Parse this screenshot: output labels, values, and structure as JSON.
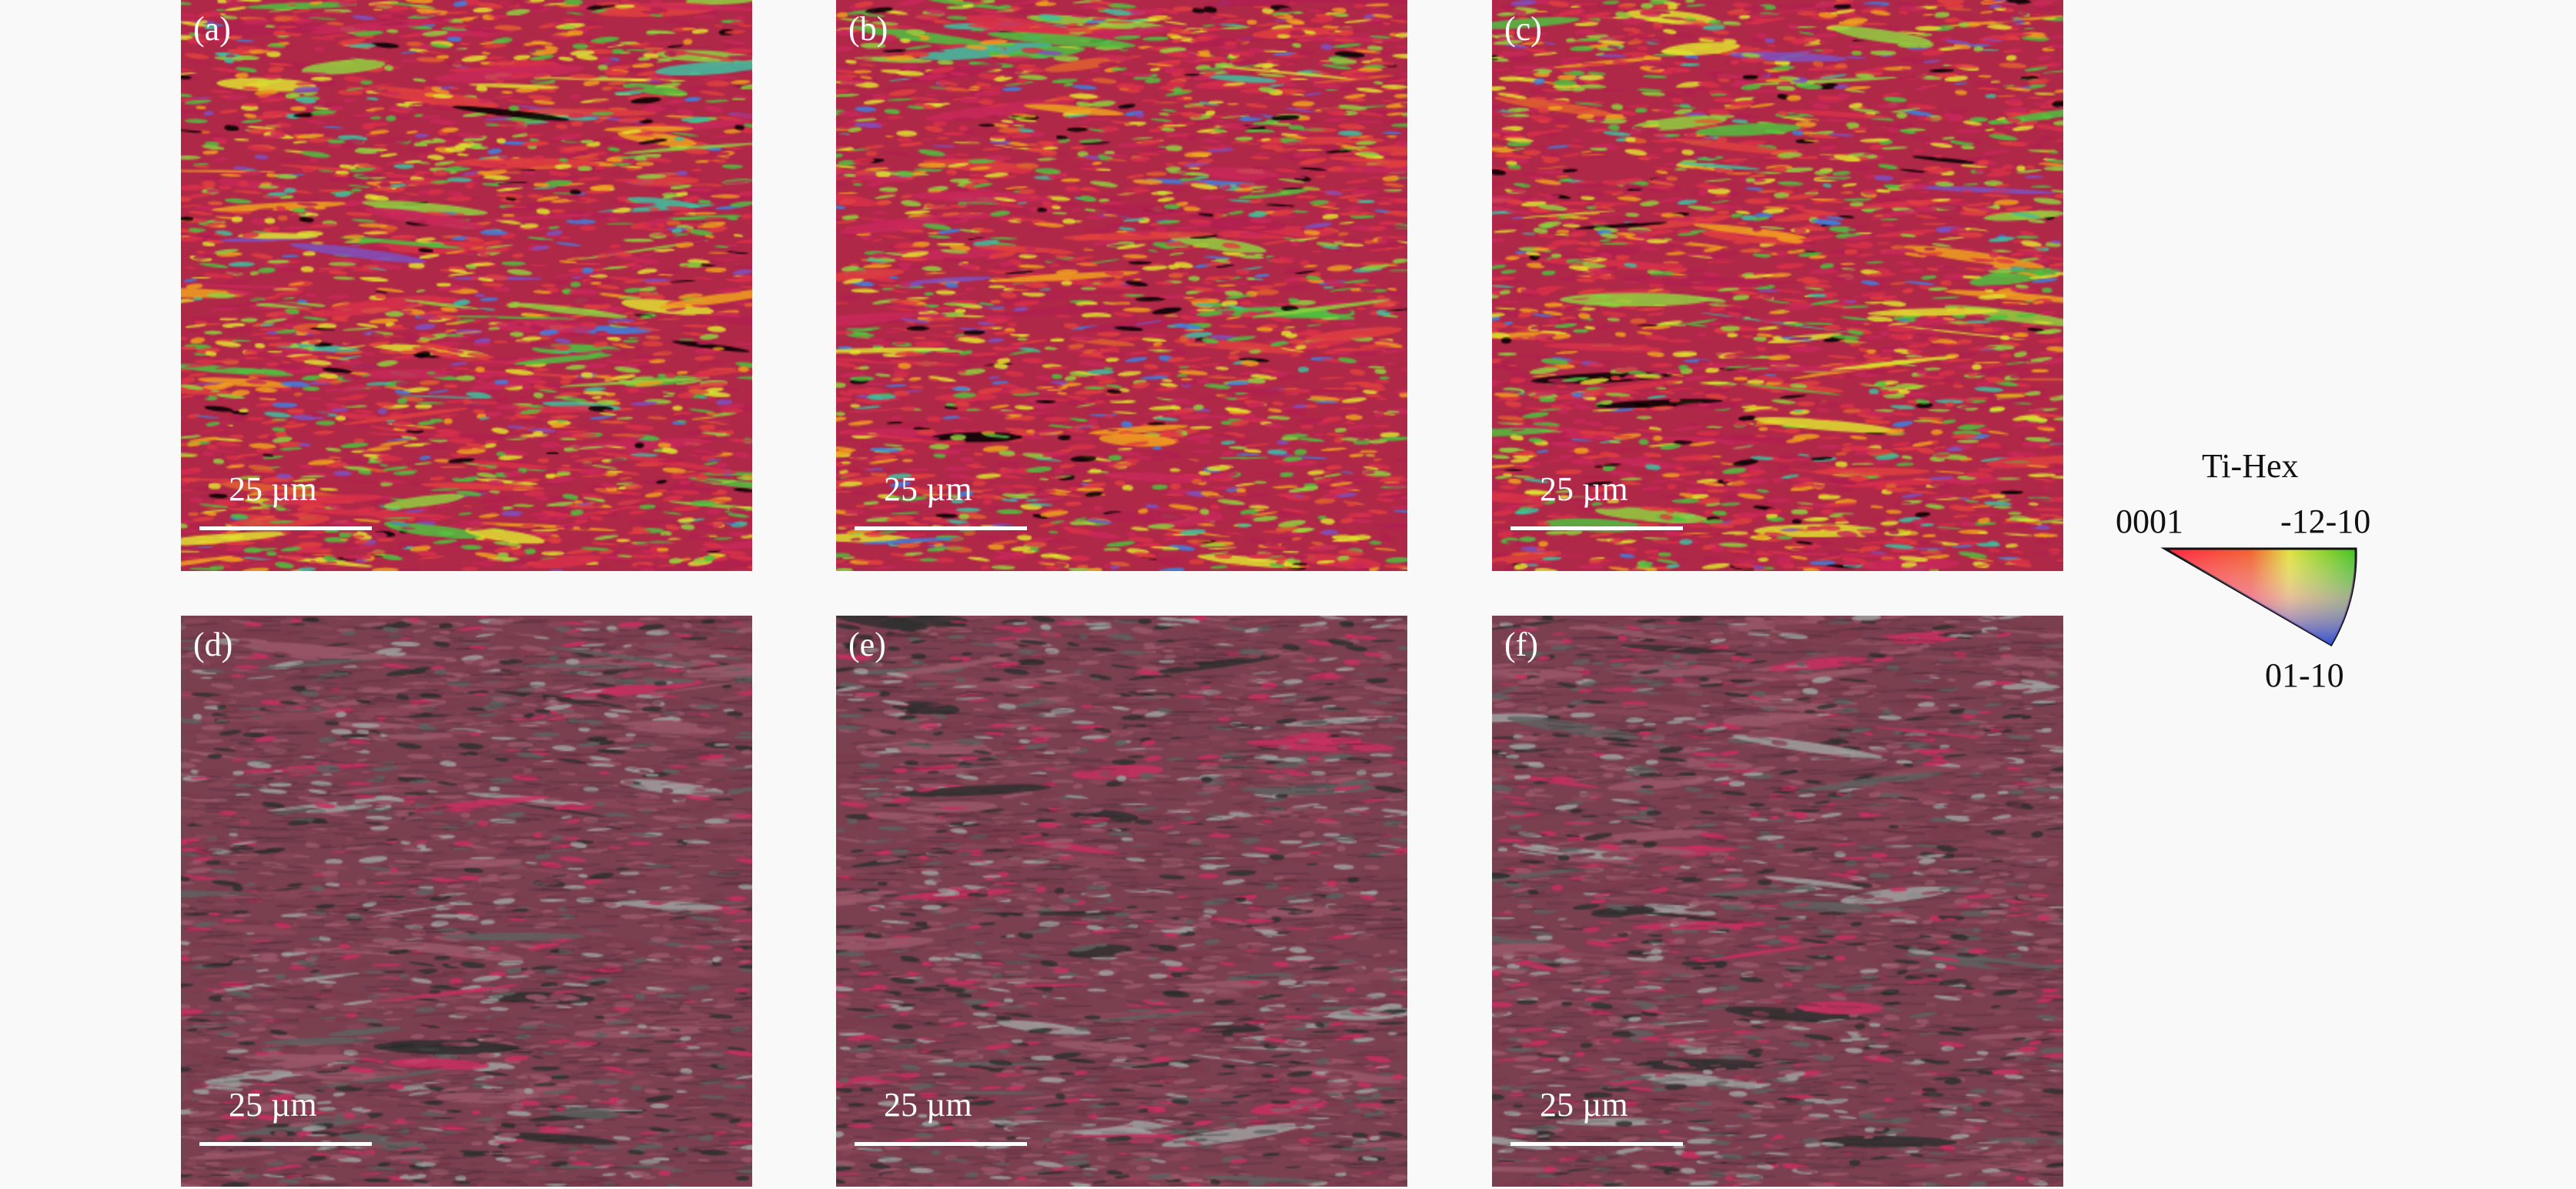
{
  "panels": [
    {
      "label": "(a)",
      "scale_bar": "25 µm",
      "type": "ipf"
    },
    {
      "label": "(b)",
      "scale_bar": "25 µm",
      "type": "ipf"
    },
    {
      "label": "(c)",
      "scale_bar": "25 µm",
      "type": "ipf"
    },
    {
      "label": "(d)",
      "scale_bar": "25 µm",
      "type": "phase"
    },
    {
      "label": "(e)",
      "scale_bar": "25 µm",
      "type": "phase"
    },
    {
      "label": "(f)",
      "scale_bar": "25 µm",
      "type": "phase"
    }
  ],
  "legend": {
    "title": "Ti-Hex",
    "corner_0001": "0001",
    "corner_1210": "-12-10",
    "corner_0110": "01-10",
    "colors": {
      "0001": "#ff2040",
      "-12-10": "#40c020",
      "01-10": "#3050d0"
    }
  },
  "ipf_palette": [
    "#d8304a",
    "#c8285a",
    "#e04040",
    "#b02050",
    "#50c040",
    "#90d040",
    "#e0e030",
    "#f0a020",
    "#e06030",
    "#4080e0",
    "#8050c0",
    "#40c0a0",
    "#000000"
  ],
  "phase_palette": [
    "#8a4858",
    "#7a3c4c",
    "#9a5868",
    "#c83060",
    "#606060",
    "#a0a0a0",
    "#303030"
  ]
}
